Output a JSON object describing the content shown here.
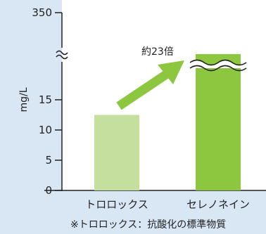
{
  "chart_data": {
    "type": "bar",
    "categories": [
      "トロロックス",
      "セレノネイン"
    ],
    "values": [
      12.5,
      291
    ],
    "ylabel": "mg/L",
    "ylim": [
      0,
      350
    ],
    "y_axis_break": [
      17.5,
      290
    ],
    "y_ticks_lower": [
      "0",
      "5",
      "10",
      "15"
    ],
    "y_tick_top": "350",
    "bar_colors": [
      "#c5df9f",
      "#8dc63f"
    ],
    "annotation": "約23倍",
    "arrow_color": "#8dc63f",
    "footnote": "※トロロックス：抗酸化の標準物質",
    "grid": false
  }
}
